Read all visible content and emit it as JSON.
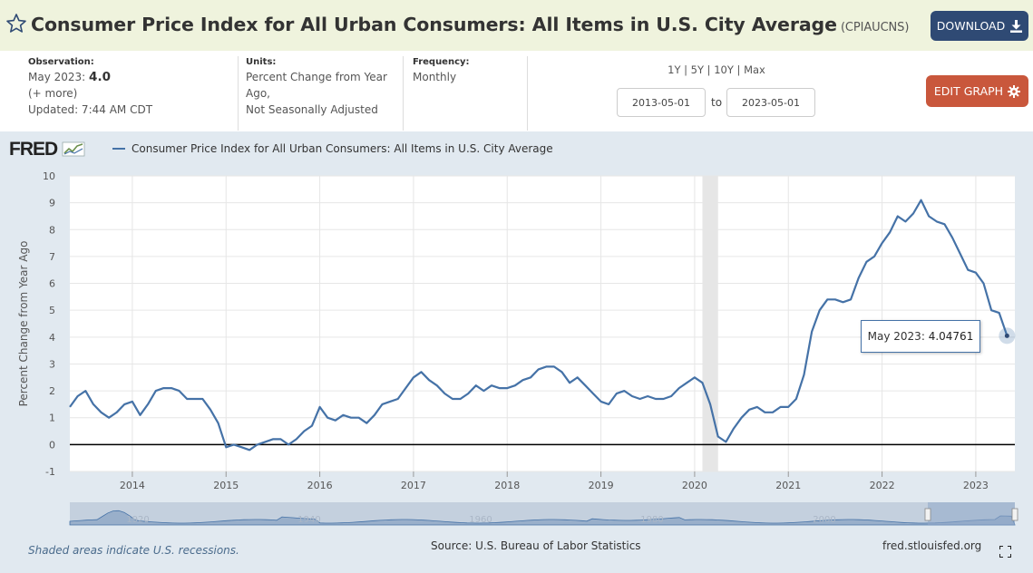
{
  "header": {
    "title": "Consumer Price Index for All Urban Consumers: All Items in U.S. City Average",
    "series_code": "(CPIAUCNS)",
    "download_label": "DOWNLOAD"
  },
  "info": {
    "observation_label": "Observation:",
    "observation_date": "May 2023:",
    "observation_value": "4.0",
    "more": "(+ more)",
    "updated": "Updated: 7:44 AM CDT",
    "units_label": "Units:",
    "units_line1": "Percent Change from Year",
    "units_line2": "Ago,",
    "units_line3": "Not Seasonally Adjusted",
    "frequency_label": "Frequency:",
    "frequency_value": "Monthly"
  },
  "ranges": {
    "r1": "1Y",
    "r2": "5Y",
    "r3": "10Y",
    "r4": "Max",
    "sep": "|"
  },
  "dates": {
    "start": "2013-05-01",
    "end": "2023-05-01",
    "to": "to"
  },
  "edit_label": "EDIT GRAPH",
  "logo": "FRED",
  "legend_label": "Consumer Price Index for All Urban Consumers: All Items in U.S. City Average",
  "tooltip": {
    "label": "May 2023:",
    "value": "4.04761"
  },
  "footer": {
    "note": "Shaded areas indicate U.S. recessions.",
    "source": "Source: U.S. Bureau of Labor Statistics",
    "site": "fred.stlouisfed.org"
  },
  "icons": {
    "star": "star-icon",
    "download": "download-icon",
    "gear": "gear-icon",
    "fullscreen": "fullscreen-icon"
  },
  "colors": {
    "line": "#4572a7",
    "download_button": "#2f4a74",
    "edit_button": "#c9573c",
    "header_bg": "#eff3dd",
    "chart_bg": "#e1e9f0",
    "recession": "#e6e6e6"
  },
  "chart_data": {
    "type": "line",
    "ylabel": "Percent Change from Year Ago",
    "ylim": [
      -1,
      10
    ],
    "yticks": [
      -1,
      0,
      1,
      2,
      3,
      4,
      5,
      6,
      7,
      8,
      9,
      10
    ],
    "xlim": [
      2013.333,
      2023.417
    ],
    "xticks": [
      2014,
      2015,
      2016,
      2017,
      2018,
      2019,
      2020,
      2021,
      2022,
      2023
    ],
    "grid": true,
    "recessions": [
      [
        2020.083,
        2020.25
      ]
    ],
    "navigator_labels": [
      "1920",
      "1940",
      "1960",
      "1980",
      "2000"
    ],
    "series": [
      {
        "name": "Consumer Price Index for All Urban Consumers: All Items in U.S. City Average",
        "start": "2013-05",
        "values": [
          1.4,
          1.8,
          2.0,
          1.5,
          1.2,
          1.0,
          1.2,
          1.5,
          1.6,
          1.1,
          1.5,
          2.0,
          2.1,
          2.1,
          2.0,
          1.7,
          1.7,
          1.7,
          1.3,
          0.8,
          -0.1,
          0.0,
          -0.1,
          -0.2,
          0.0,
          0.1,
          0.2,
          0.2,
          0.0,
          0.2,
          0.5,
          0.7,
          1.4,
          1.0,
          0.9,
          1.1,
          1.0,
          1.0,
          0.8,
          1.1,
          1.5,
          1.6,
          1.7,
          2.1,
          2.5,
          2.7,
          2.4,
          2.2,
          1.9,
          1.7,
          1.7,
          1.9,
          2.2,
          2.0,
          2.2,
          2.1,
          2.1,
          2.2,
          2.4,
          2.5,
          2.8,
          2.9,
          2.9,
          2.7,
          2.3,
          2.5,
          2.2,
          1.9,
          1.6,
          1.5,
          1.9,
          2.0,
          1.8,
          1.7,
          1.8,
          1.7,
          1.7,
          1.8,
          2.1,
          2.3,
          2.5,
          2.3,
          1.5,
          0.3,
          0.1,
          0.6,
          1.0,
          1.3,
          1.4,
          1.2,
          1.2,
          1.4,
          1.4,
          1.7,
          2.6,
          4.2,
          5.0,
          5.4,
          5.4,
          5.3,
          5.4,
          6.2,
          6.8,
          7.0,
          7.5,
          7.9,
          8.5,
          8.3,
          8.6,
          9.1,
          8.5,
          8.3,
          8.2,
          7.7,
          7.1,
          6.5,
          6.4,
          6.0,
          5.0,
          4.9,
          4.05
        ]
      }
    ]
  }
}
